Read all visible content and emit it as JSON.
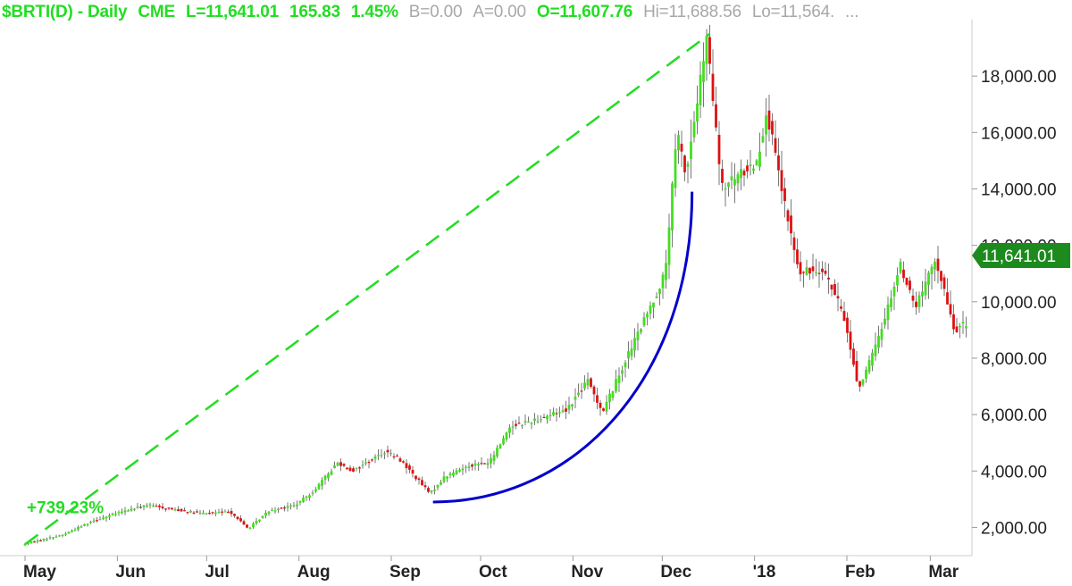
{
  "header": {
    "symbol": "$BRTI(D) - Daily",
    "exchange": "CME",
    "last": "L=11,641.01",
    "change": "165.83",
    "change_pct": "1.45%",
    "bid": "B=0.00",
    "ask": "A=0.00",
    "open": "O=11,607.76",
    "high": "Hi=11,688.56",
    "low": "Lo=11,564.",
    "more": "..."
  },
  "colors": {
    "up": "#44dd22",
    "down": "#dd1111",
    "trendline": "#22dd22",
    "curve": "#0000cc",
    "last_badge": "#1d8a1d"
  },
  "chart_data": {
    "type": "candlestick",
    "ylim": [
      1000,
      20000
    ],
    "y_ticks": [
      "2,000.00",
      "4,000.00",
      "6,000.00",
      "8,000.00",
      "10,000.00",
      "12,000.00",
      "14,000.00",
      "16,000.00",
      "18,000.00"
    ],
    "y_tick_values": [
      2000,
      4000,
      6000,
      8000,
      10000,
      12000,
      14000,
      16000,
      18000
    ],
    "x_ticks": [
      "May",
      "Jun",
      "Jul",
      "Aug",
      "Sep",
      "Oct",
      "Nov",
      "Dec",
      "'18",
      "Feb",
      "Mar"
    ],
    "x_tick_dates": [
      "2017-05-01",
      "2017-06-01",
      "2017-07-01",
      "2017-08-01",
      "2017-09-01",
      "2017-10-01",
      "2017-11-01",
      "2017-12-01",
      "2018-01-01",
      "2018-02-01",
      "2018-03-01"
    ],
    "last_value": "11,641.01",
    "last_value_num": 11641.01,
    "annotation": {
      "label": "+739.23%",
      "trendline_from": {
        "date": "2017-05-01",
        "value": 1400
      },
      "trendline_to": {
        "date": "2017-12-17",
        "value": 19500
      }
    },
    "curve_annotation": {
      "from": {
        "date": "2017-09-15",
        "value": 2900
      },
      "to": {
        "date": "2017-12-11",
        "value": 13900
      }
    },
    "price_path": [
      [
        "2017-05-01",
        1400
      ],
      [
        "2017-05-15",
        1750
      ],
      [
        "2017-05-25",
        2250
      ],
      [
        "2017-06-05",
        2600
      ],
      [
        "2017-06-12",
        2800
      ],
      [
        "2017-06-20",
        2650
      ],
      [
        "2017-06-30",
        2500
      ],
      [
        "2017-07-10",
        2550
      ],
      [
        "2017-07-16",
        1950
      ],
      [
        "2017-07-23",
        2600
      ],
      [
        "2017-08-01",
        2800
      ],
      [
        "2017-08-07",
        3300
      ],
      [
        "2017-08-15",
        4300
      ],
      [
        "2017-08-20",
        4000
      ],
      [
        "2017-08-31",
        4700
      ],
      [
        "2017-09-05",
        4400
      ],
      [
        "2017-09-15",
        3200
      ],
      [
        "2017-09-20",
        3800
      ],
      [
        "2017-09-28",
        4200
      ],
      [
        "2017-10-05",
        4300
      ],
      [
        "2017-10-12",
        5600
      ],
      [
        "2017-10-20",
        5800
      ],
      [
        "2017-10-31",
        6200
      ],
      [
        "2017-11-07",
        7200
      ],
      [
        "2017-11-12",
        6100
      ],
      [
        "2017-11-20",
        8000
      ],
      [
        "2017-11-28",
        9800
      ],
      [
        "2017-12-03",
        11000
      ],
      [
        "2017-12-07",
        16000
      ],
      [
        "2017-12-10",
        14500
      ],
      [
        "2017-12-17",
        19300
      ],
      [
        "2017-12-22",
        14000
      ],
      [
        "2017-12-28",
        14500
      ],
      [
        "2018-01-03",
        15000
      ],
      [
        "2018-01-06",
        16800
      ],
      [
        "2018-01-12",
        13500
      ],
      [
        "2018-01-17",
        11000
      ],
      [
        "2018-01-25",
        11200
      ],
      [
        "2018-02-01",
        9500
      ],
      [
        "2018-02-06",
        6900
      ],
      [
        "2018-02-12",
        8500
      ],
      [
        "2018-02-20",
        11300
      ],
      [
        "2018-02-25",
        9800
      ],
      [
        "2018-03-04",
        11500
      ],
      [
        "2018-03-10",
        9000
      ],
      [
        "2018-03-14",
        9200
      ]
    ]
  }
}
